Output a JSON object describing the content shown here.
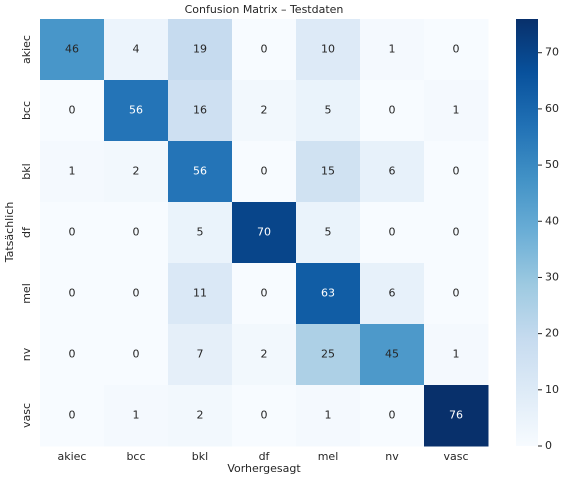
{
  "chart_data": {
    "type": "heatmap",
    "title": "Confusion Matrix – Testdaten",
    "x_label": "Vorhergesagt",
    "y_label": "Tatsächlich",
    "x_categories": [
      "akiec",
      "bcc",
      "bkl",
      "df",
      "mel",
      "nv",
      "vasc"
    ],
    "y_categories": [
      "akiec",
      "bcc",
      "bkl",
      "df",
      "mel",
      "nv",
      "vasc"
    ],
    "values": [
      [
        46,
        4,
        19,
        0,
        10,
        1,
        0
      ],
      [
        0,
        56,
        16,
        2,
        5,
        0,
        1
      ],
      [
        1,
        2,
        56,
        0,
        15,
        6,
        0
      ],
      [
        0,
        0,
        5,
        70,
        5,
        0,
        0
      ],
      [
        0,
        0,
        11,
        0,
        63,
        6,
        0
      ],
      [
        0,
        0,
        7,
        2,
        25,
        45,
        1
      ],
      [
        0,
        1,
        2,
        0,
        1,
        0,
        76
      ]
    ],
    "colormap": [
      "#f7fbff",
      "#deebf7",
      "#c6dbef",
      "#9ecae1",
      "#6baed6",
      "#4292c6",
      "#2171b5",
      "#08519c",
      "#08306b"
    ],
    "clim": [
      0,
      76
    ],
    "cticks": [
      0,
      10,
      20,
      30,
      40,
      50,
      60,
      70
    ]
  }
}
